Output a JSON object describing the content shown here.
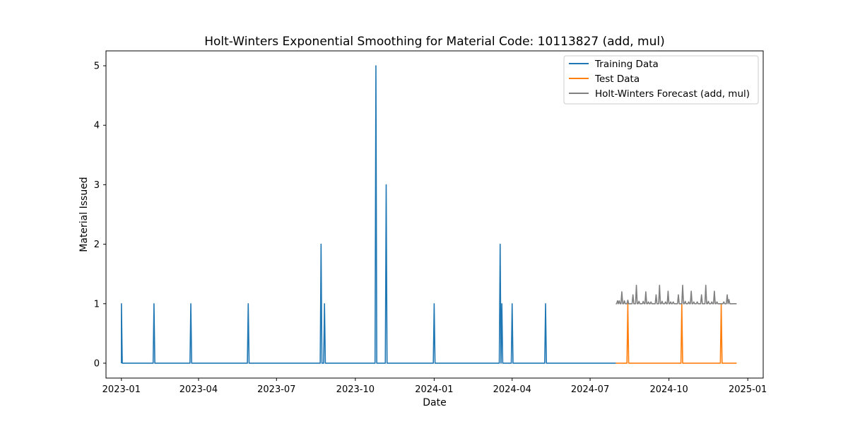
{
  "chart_data": {
    "type": "line",
    "title": "Holt-Winters Exponential Smoothing for Material Code: 10113827 (add, mul)",
    "xlabel": "Date",
    "ylabel": "Material Issued",
    "xlim": [
      "2022-12-14",
      "2025-01-19"
    ],
    "ylim": [
      -0.25,
      5.25
    ],
    "x_ticks": [
      "2023-01",
      "2023-04",
      "2023-07",
      "2023-10",
      "2024-01",
      "2024-04",
      "2024-07",
      "2024-10",
      "2025-01"
    ],
    "y_ticks": [
      0,
      1,
      2,
      3,
      4,
      5
    ],
    "legend_position": "top-right",
    "series": [
      {
        "name": "Training Data",
        "color": "#1f77b4",
        "x_range": [
          "2023-01-01",
          "2024-07-31"
        ],
        "baseline": 0,
        "spikes": [
          {
            "date": "2023-01-01",
            "value": 1
          },
          {
            "date": "2023-02-08",
            "value": 1
          },
          {
            "date": "2023-03-23",
            "value": 1
          },
          {
            "date": "2023-05-29",
            "value": 1
          },
          {
            "date": "2023-08-22",
            "value": 2
          },
          {
            "date": "2023-08-26",
            "value": 1
          },
          {
            "date": "2023-10-25",
            "value": 5
          },
          {
            "date": "2023-11-06",
            "value": 3
          },
          {
            "date": "2024-01-01",
            "value": 1
          },
          {
            "date": "2024-03-18",
            "value": 2
          },
          {
            "date": "2024-03-20",
            "value": 1
          },
          {
            "date": "2024-04-01",
            "value": 1
          },
          {
            "date": "2024-05-10",
            "value": 1
          }
        ]
      },
      {
        "name": "Test Data",
        "color": "#ff7f0e",
        "x_range": [
          "2024-07-31",
          "2024-12-19"
        ],
        "baseline": 0,
        "spikes": [
          {
            "date": "2024-08-14",
            "value": 1
          },
          {
            "date": "2024-10-16",
            "value": 1
          },
          {
            "date": "2024-12-01",
            "value": 1
          }
        ]
      },
      {
        "name": "Holt-Winters Forecast (add, mul)",
        "color": "#808080",
        "x_range": [
          "2024-07-31",
          "2024-12-19"
        ],
        "baseline": 1.0,
        "spikes": [
          {
            "date": "2024-08-02",
            "value": 1.05
          },
          {
            "date": "2024-08-04",
            "value": 1.05
          },
          {
            "date": "2024-08-07",
            "value": 1.2
          },
          {
            "date": "2024-08-10",
            "value": 1.05
          },
          {
            "date": "2024-08-14",
            "value": 1.06
          },
          {
            "date": "2024-08-20",
            "value": 1.15
          },
          {
            "date": "2024-08-24",
            "value": 1.31
          },
          {
            "date": "2024-08-27",
            "value": 1.04
          },
          {
            "date": "2024-09-01",
            "value": 1.04
          },
          {
            "date": "2024-09-04",
            "value": 1.2
          },
          {
            "date": "2024-09-07",
            "value": 1.03
          },
          {
            "date": "2024-09-10",
            "value": 1.03
          },
          {
            "date": "2024-09-16",
            "value": 1.15
          },
          {
            "date": "2024-09-20",
            "value": 1.31
          },
          {
            "date": "2024-09-23",
            "value": 1.04
          },
          {
            "date": "2024-09-27",
            "value": 1.03
          },
          {
            "date": "2024-09-30",
            "value": 1.21
          },
          {
            "date": "2024-10-03",
            "value": 1.03
          },
          {
            "date": "2024-10-06",
            "value": 1.03
          },
          {
            "date": "2024-10-12",
            "value": 1.15
          },
          {
            "date": "2024-10-17",
            "value": 1.31
          },
          {
            "date": "2024-10-20",
            "value": 1.04
          },
          {
            "date": "2024-10-24",
            "value": 1.03
          },
          {
            "date": "2024-10-27",
            "value": 1.21
          },
          {
            "date": "2024-10-30",
            "value": 1.03
          },
          {
            "date": "2024-11-03",
            "value": 1.03
          },
          {
            "date": "2024-11-08",
            "value": 1.15
          },
          {
            "date": "2024-11-13",
            "value": 1.31
          },
          {
            "date": "2024-11-16",
            "value": 1.04
          },
          {
            "date": "2024-11-20",
            "value": 1.03
          },
          {
            "date": "2024-11-23",
            "value": 1.21
          },
          {
            "date": "2024-11-26",
            "value": 1.03
          },
          {
            "date": "2024-12-04",
            "value": 1.03
          },
          {
            "date": "2024-12-08",
            "value": 1.15
          },
          {
            "date": "2024-12-10",
            "value": 1.07
          }
        ]
      }
    ]
  }
}
